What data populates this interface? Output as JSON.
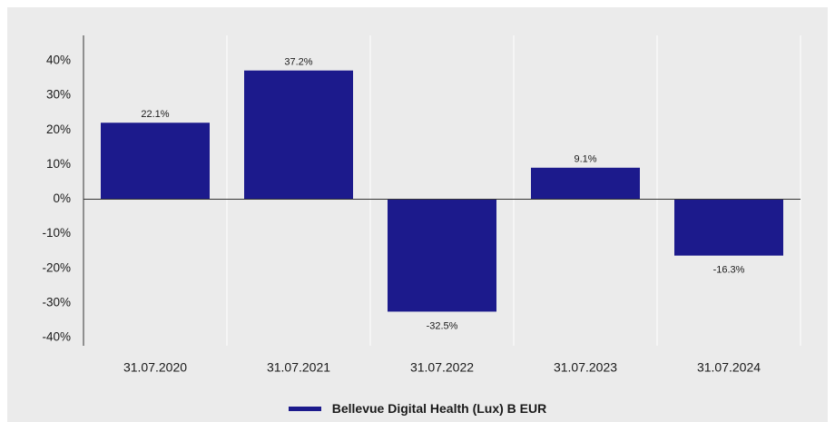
{
  "colors": {
    "bar": "#1c1a8c",
    "background": "#ebebeb",
    "grid": "#ffffff",
    "axis": "#333333"
  },
  "legend": {
    "label": "Bellevue Digital Health (Lux) B EUR"
  },
  "chart_data": {
    "type": "bar",
    "categories": [
      "31.07.2020",
      "31.07.2021",
      "31.07.2022",
      "31.07.2023",
      "31.07.2024"
    ],
    "series": [
      {
        "name": "Bellevue Digital Health (Lux) B EUR",
        "values": [
          22.1,
          37.2,
          -32.5,
          9.1,
          -16.3
        ]
      }
    ],
    "data_labels": [
      "22.1%",
      "37.2%",
      "-32.5%",
      "9.1%",
      "-16.3%"
    ],
    "yticks": [
      40,
      30,
      20,
      10,
      0,
      -10,
      -20,
      -30,
      -40
    ],
    "ytick_labels": [
      "40%",
      "30%",
      "20%",
      "10%",
      "0%",
      "-10%",
      "-20%",
      "-30%",
      "-40%"
    ],
    "ylim": [
      -40,
      40
    ],
    "xlabel": "",
    "ylabel": "",
    "grid": "vertical",
    "legend_position": "bottom-center"
  }
}
